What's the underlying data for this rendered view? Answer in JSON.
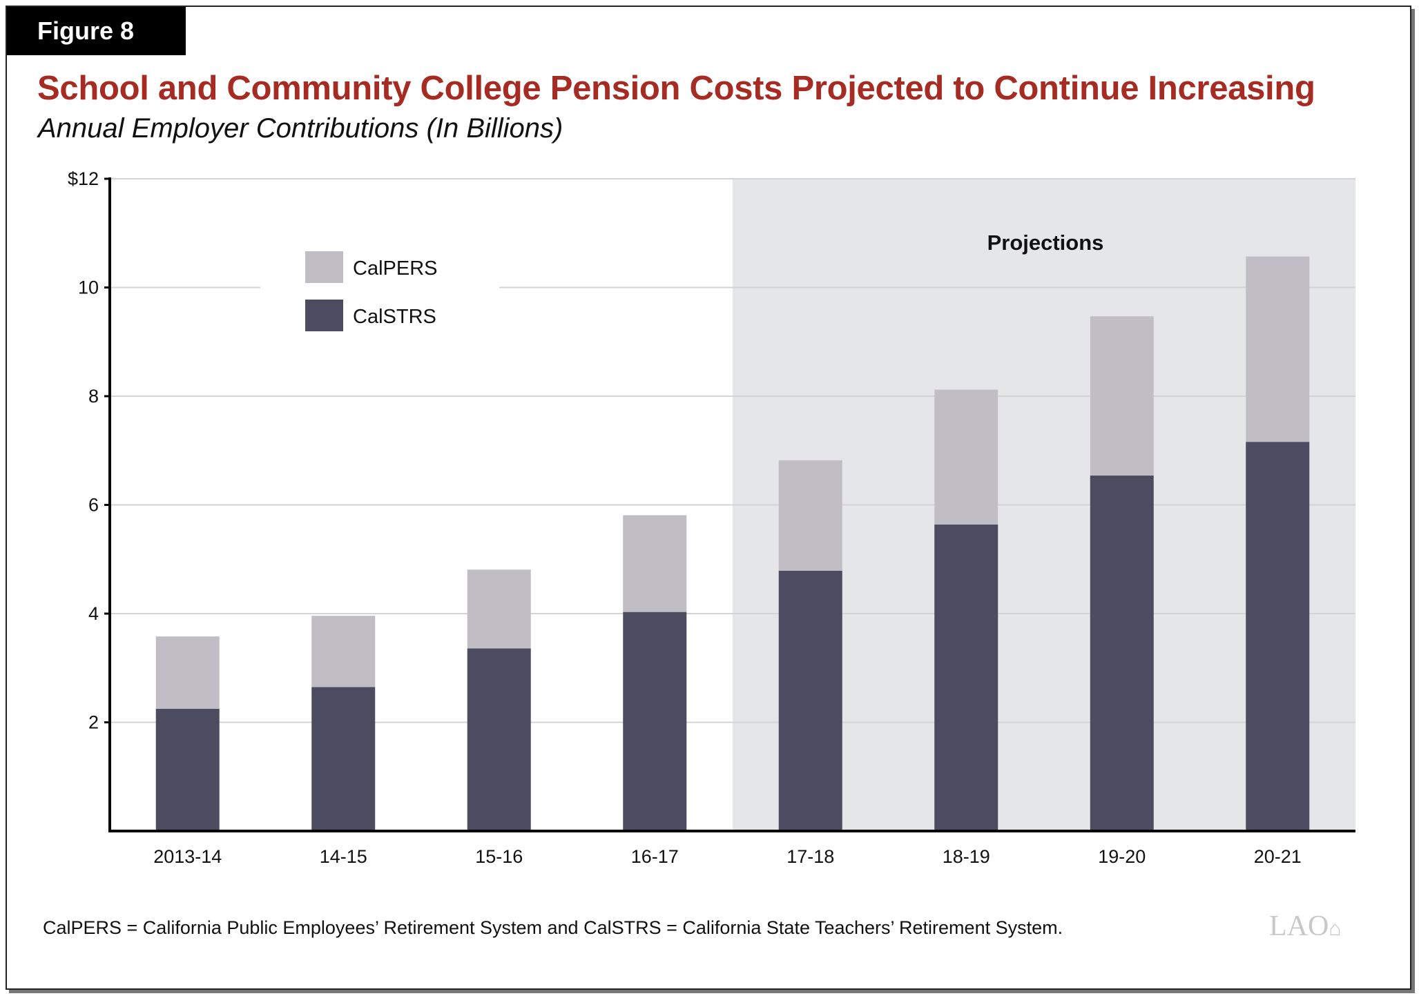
{
  "figure_label": "Figure 8",
  "footnote": "CalPERS = California Public Employees’ Retirement System and CalSTRS = California State Teachers’ Retirement System.",
  "logo": "LAO",
  "chart_data": {
    "type": "bar",
    "stacked": true,
    "title": "School and Community College Pension Costs Projected to Continue Increasing",
    "subtitle": "Annual Employer Contributions (In Billions)",
    "xlabel": "",
    "ylabel": "",
    "categories": [
      "2013-14",
      "14-15",
      "15-16",
      "16-17",
      "17-18",
      "18-19",
      "19-20",
      "20-21"
    ],
    "series": [
      {
        "name": "CalSTRS",
        "color": "#4b4c60",
        "values": [
          2.25,
          2.65,
          3.36,
          4.03,
          4.79,
          5.64,
          6.54,
          7.16
        ]
      },
      {
        "name": "CalPERS",
        "color": "#c0bec4",
        "values": [
          1.33,
          1.31,
          1.45,
          1.78,
          2.03,
          2.48,
          2.93,
          3.41
        ]
      }
    ],
    "ylim": [
      0,
      12
    ],
    "yticks": [
      2,
      4,
      6,
      8,
      10,
      12
    ],
    "ytick_labels": [
      "2",
      "4",
      "6",
      "8",
      "10",
      "$12"
    ],
    "grid": true,
    "legend_position": "top-left",
    "annotation": {
      "label": "Projections",
      "from_category": "17-18",
      "to_category": "20-21",
      "shade_color": "#e5e6e8"
    }
  }
}
